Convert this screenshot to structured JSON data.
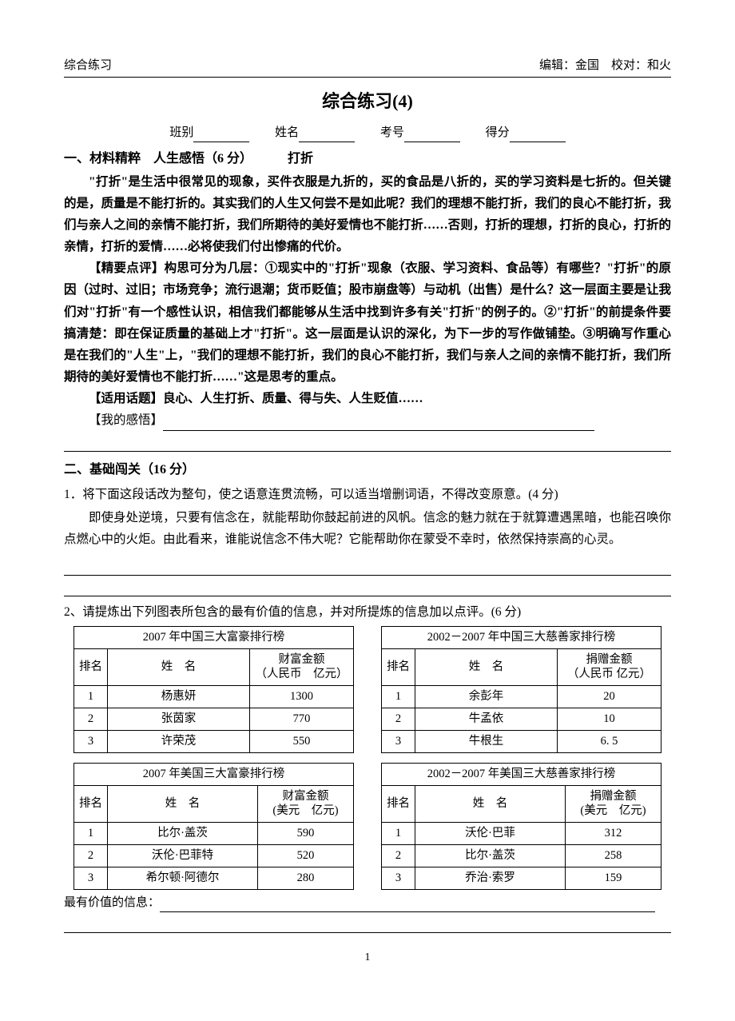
{
  "header": {
    "left": "综合练习",
    "right": "编辑：金国　校对：和火"
  },
  "title": "综合练习(4)",
  "info_labels": {
    "class": "班别",
    "name": "姓名",
    "exam_no": "考号",
    "score": "得分"
  },
  "section1": {
    "head": "一、材料精粹　人生感悟（6 分）",
    "subtitle": "打折",
    "p1": "\"打折\"是生活中很常见的现象，买件衣服是九折的，买的食品是八折的，买的学习资料是七折的。但关键的是，质量是不能打折的。其实我们的人生又何尝不是如此呢？我们的理想不能打折，我们的良心不能打折，我们与亲人之间的亲情不能打折，我们所期待的美好爱情也不能打折……否则，打折的理想，打折的良心，打折的亲情，打折的爱情……必将使我们付出惨痛的代价。",
    "p2": "【精要点评】构思可分为几层：①现实中的\"打折\"现象（衣服、学习资料、食品等）有哪些？\"打折\"的原因（过时、过旧；市场竞争；流行退潮；货币贬值；股市崩盘等）与动机（出售）是什么？这一层面主要是让我们对\"打折\"有一个感性认识，相信我们都能够从生活中找到许多有关\"打折\"的例子的。②\"打折\"的前提条件要搞清楚：即在保证质量的基础上才\"打折\"。这一层面是认识的深化，为下一步的写作做铺垫。③明确写作重心是在我们的\"人生\"上，\"我们的理想不能打折，我们的良心不能打折，我们与亲人之间的亲情不能打折，我们所期待的美好爱情也不能打折……\"这是思考的重点。",
    "p3": "【适用话题】良心、人生打折、质量、得与失、人生贬值……",
    "p4_label": "【我的感悟】"
  },
  "section2": {
    "head": "二、基础闯关（16 分）",
    "q1_head": "1．将下面这段话改为整句，使之语意连贯流畅，可以适当增删词语，不得改变原意。(4 分)",
    "q1_body": "即使身处逆境，只要有信念在，就能帮助你鼓起前进的风帆。信念的魅力就在于就算遭遇黑暗，也能召唤你点燃心中的火炬。由此看来，谁能说信念不伟大呢？它能帮助你在蒙受不幸时，依然保持崇高的心灵。",
    "q2_head": "2、请提炼出下列图表所包含的最有价值的信息，并对所提炼的信息加以点评。(6 分)",
    "table_cn_rich": {
      "title": "2007 年中国三大富豪排行榜",
      "col_rank": "排名",
      "col_name": "姓　名",
      "col_val": "财富金额\n（人民币　亿元）",
      "rows": [
        {
          "rank": "1",
          "name": "杨惠妍",
          "val": "1300"
        },
        {
          "rank": "2",
          "name": "张茵家",
          "val": "770"
        },
        {
          "rank": "3",
          "name": "许荣茂",
          "val": "550"
        }
      ]
    },
    "table_cn_charity": {
      "title": "2002－2007 年中国三大慈善家排行榜",
      "col_rank": "排名",
      "col_name": "姓　名",
      "col_val": "捐赠金额\n（人民币 亿元）",
      "rows": [
        {
          "rank": "1",
          "name": "余彭年",
          "val": "20"
        },
        {
          "rank": "2",
          "name": "牛孟依",
          "val": "10"
        },
        {
          "rank": "3",
          "name": "牛根生",
          "val": "6. 5"
        }
      ]
    },
    "table_us_rich": {
      "title": "2007 年美国三大富豪排行榜",
      "col_rank": "排名",
      "col_name": "姓　名",
      "col_val": "财富金额\n(美元　亿元)",
      "rows": [
        {
          "rank": "1",
          "name": "比尔·盖茨",
          "val": "590"
        },
        {
          "rank": "2",
          "name": "沃伦·巴菲特",
          "val": "520"
        },
        {
          "rank": "3",
          "name": "希尔顿·阿德尔",
          "val": "280"
        }
      ]
    },
    "table_us_charity": {
      "title": "2002－2007 年美国三大慈善家排行榜",
      "col_rank": "排名",
      "col_name": "姓　名",
      "col_val": "捐赠金额\n(美元　亿元)",
      "rows": [
        {
          "rank": "1",
          "name": "沃伦·巴菲",
          "val": "312"
        },
        {
          "rank": "2",
          "name": "比尔·盖茨",
          "val": "258"
        },
        {
          "rank": "3",
          "name": "乔治·索罗",
          "val": "159"
        }
      ]
    },
    "info_result_label": "最有价值的信息："
  },
  "page_number": "1"
}
